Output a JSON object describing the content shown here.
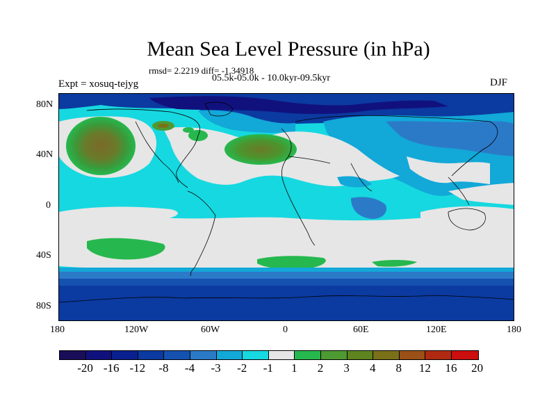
{
  "title": "Mean Sea Level Pressure (in hPa)",
  "subtitle_stats": "rmsd= 2.2219 diff= -1.34918",
  "subtitle_period": "05.5k-05.0k - 10.0kyr-09.5kyr",
  "experiment": "Expt = xosuq-tejyg",
  "season": "DJF",
  "map": {
    "lat_labels": [
      "80N",
      "40N",
      "0",
      "40S",
      "80S"
    ],
    "lon_labels": [
      "180",
      "120W",
      "60W",
      "0",
      "60E",
      "120E",
      "180"
    ]
  },
  "legend": {
    "labels": [
      "-20",
      "-16",
      "-12",
      "-8",
      "-4",
      "-3",
      "-2",
      "-1",
      "1",
      "2",
      "3",
      "4",
      "8",
      "12",
      "16",
      "20"
    ],
    "colors": [
      "#1a0d5a",
      "#11117e",
      "#0a2090",
      "#0b3aa0",
      "#1552b0",
      "#2b7ac8",
      "#12a8d8",
      "#16d8e0",
      "#e6e6e6",
      "#26b84e",
      "#4e9a32",
      "#5e8420",
      "#7a7018",
      "#9a5016",
      "#b02a12",
      "#cc0e0e"
    ]
  },
  "colors": {
    "ocean_deep": "#0b3aa0",
    "ocean_mid": "#12a8d8",
    "ocean_light": "#16d8e0",
    "neutral": "#e6e6e6",
    "green": "#26b84e",
    "brown": "#7a7018"
  }
}
